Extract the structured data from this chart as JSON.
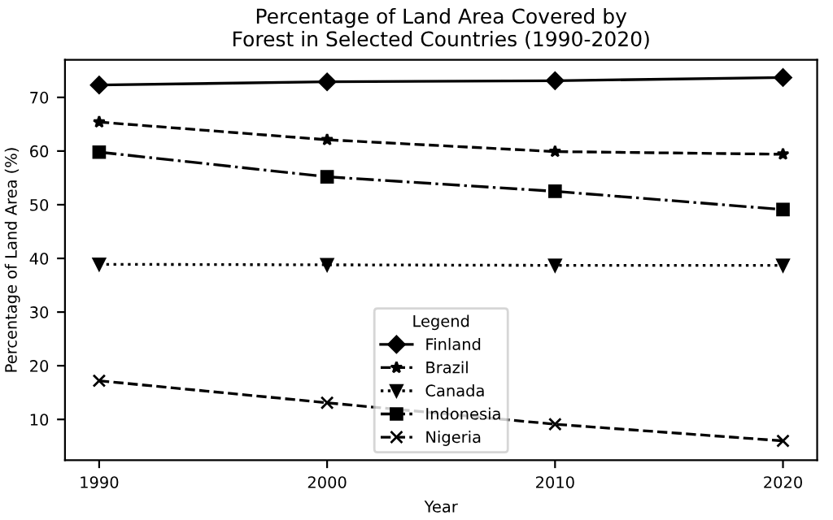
{
  "chart_data": {
    "type": "line",
    "title": "Percentage of Land Area Covered by\nForest in Selected Countries (1990-2020)",
    "xlabel": "Year",
    "ylabel": "Percentage of Land Area (%)",
    "legend_title": "Legend",
    "x": [
      1990,
      2000,
      2010,
      2020
    ],
    "xlim": [
      1988.5,
      2021.5
    ],
    "xticks": [
      1990,
      2000,
      2010,
      2020
    ],
    "ylim": [
      2.4,
      77
    ],
    "yticks": [
      10,
      20,
      30,
      40,
      50,
      60,
      70
    ],
    "grid": false,
    "legend": "bottom",
    "series": [
      {
        "name": "Finland",
        "color": "#000000",
        "marker": "diamond",
        "line_style": "solid",
        "values": [
          72.3,
          72.9,
          73.1,
          73.7
        ]
      },
      {
        "name": "Brazil",
        "color": "#000000",
        "marker": "star",
        "line_style": "dashed",
        "values": [
          65.4,
          62.1,
          59.9,
          59.4
        ]
      },
      {
        "name": "Canada",
        "color": "#000000",
        "marker": "triangle",
        "line_style": "dotted",
        "values": [
          38.9,
          38.8,
          38.7,
          38.7
        ]
      },
      {
        "name": "Indonesia",
        "color": "#000000",
        "marker": "square",
        "line_style": "dashdot",
        "values": [
          59.8,
          55.2,
          52.5,
          49.1
        ]
      },
      {
        "name": "Nigeria",
        "color": "#000000",
        "marker": "cross",
        "line_style": "dashed",
        "values": [
          17.2,
          13.1,
          9.1,
          6.0
        ]
      }
    ]
  }
}
